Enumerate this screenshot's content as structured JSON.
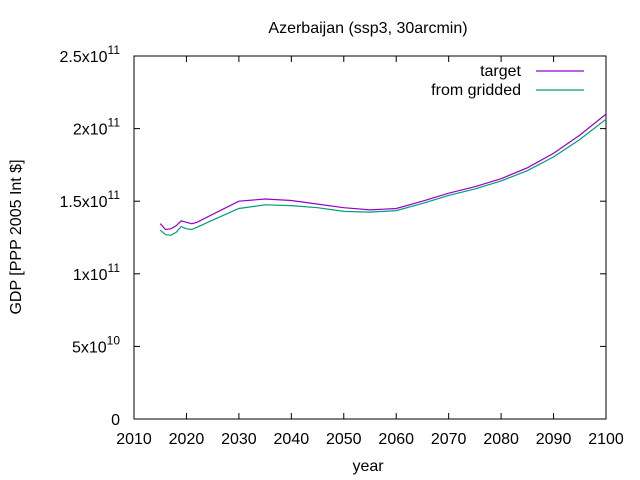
{
  "chart_data": {
    "type": "line",
    "title": "Azerbaijan (ssp3, 30arcmin)",
    "xlabel": "year",
    "ylabel": "GDP [PPP 2005 Int $]",
    "xlim": [
      2010,
      2100
    ],
    "ylim": [
      0,
      250000000000.0
    ],
    "x_ticks": [
      {
        "value": 2010,
        "label": "2010"
      },
      {
        "value": 2020,
        "label": "2020"
      },
      {
        "value": 2030,
        "label": "2030"
      },
      {
        "value": 2040,
        "label": "2040"
      },
      {
        "value": 2050,
        "label": "2050"
      },
      {
        "value": 2060,
        "label": "2060"
      },
      {
        "value": 2070,
        "label": "2070"
      },
      {
        "value": 2080,
        "label": "2080"
      },
      {
        "value": 2090,
        "label": "2090"
      },
      {
        "value": 2100,
        "label": "2100"
      }
    ],
    "y_ticks": [
      {
        "value": 0,
        "mantissa": "0",
        "exponent": ""
      },
      {
        "value": 50000000000.0,
        "mantissa": "5x10",
        "exponent": "10"
      },
      {
        "value": 100000000000.0,
        "mantissa": "1x10",
        "exponent": "11"
      },
      {
        "value": 150000000000.0,
        "mantissa": "1.5x10",
        "exponent": "11"
      },
      {
        "value": 200000000000.0,
        "mantissa": "2x10",
        "exponent": "11"
      },
      {
        "value": 250000000000.0,
        "mantissa": "2.5x10",
        "exponent": "11"
      }
    ],
    "grid": false,
    "legend_position": "top-right",
    "series": [
      {
        "name": "target",
        "color": "#9400d3",
        "x": [
          2015,
          2016,
          2017,
          2018,
          2019,
          2020,
          2021,
          2022,
          2025,
          2030,
          2035,
          2040,
          2045,
          2050,
          2055,
          2060,
          2065,
          2070,
          2075,
          2080,
          2085,
          2090,
          2095,
          2100
        ],
        "y": [
          134500000000.0,
          130500000000.0,
          131000000000.0,
          133000000000.0,
          136500000000.0,
          135500000000.0,
          134500000000.0,
          135500000000.0,
          141000000000.0,
          150000000000.0,
          151500000000.0,
          150500000000.0,
          148000000000.0,
          145500000000.0,
          144000000000.0,
          145000000000.0,
          150000000000.0,
          155500000000.0,
          160000000000.0,
          165500000000.0,
          173000000000.0,
          183000000000.0,
          195500000000.0,
          210000000000.0
        ]
      },
      {
        "name": "from gridded",
        "color": "#009e73",
        "x": [
          2015,
          2016,
          2017,
          2018,
          2019,
          2020,
          2021,
          2022,
          2025,
          2030,
          2035,
          2040,
          2045,
          2050,
          2055,
          2060,
          2065,
          2070,
          2075,
          2080,
          2085,
          2090,
          2095,
          2100
        ],
        "y": [
          130000000000.0,
          127000000000.0,
          126500000000.0,
          128500000000.0,
          132500000000.0,
          131000000000.0,
          130500000000.0,
          132000000000.0,
          137000000000.0,
          145000000000.0,
          147500000000.0,
          147000000000.0,
          145500000000.0,
          143000000000.0,
          142500000000.0,
          143500000000.0,
          148500000000.0,
          154000000000.0,
          158500000000.0,
          164000000000.0,
          171000000000.0,
          180500000000.0,
          192500000000.0,
          206500000000.0
        ]
      }
    ]
  }
}
